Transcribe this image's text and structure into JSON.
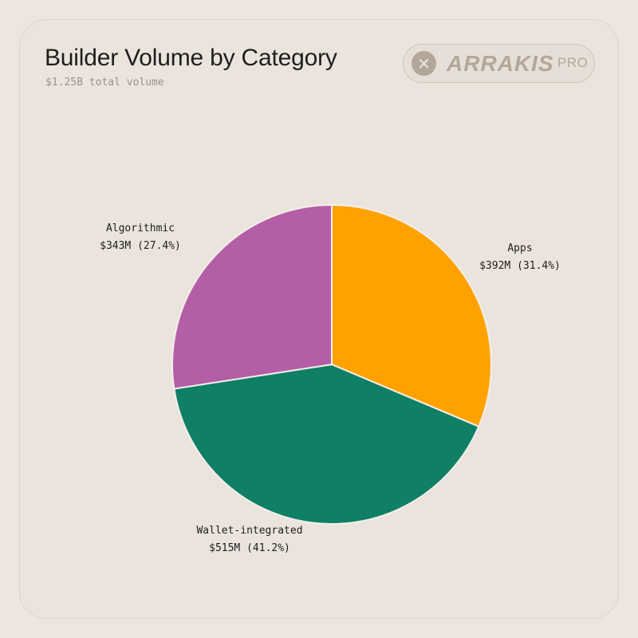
{
  "header": {
    "title": "Builder Volume by Category",
    "subtitle": "$1.25B total volume"
  },
  "brand": {
    "icon": "x-logo-icon",
    "name": "ARRAKIS",
    "tier": "PRO"
  },
  "colors": {
    "apps": "#ffa200",
    "wallet": "#0f7f65",
    "algorithmic": "#b45ea7",
    "background": "#ece6df"
  },
  "chart_data": {
    "type": "pie",
    "title": "Builder Volume by Category",
    "subtitle": "$1.25B total volume",
    "total": "$1.25B",
    "slices": [
      {
        "name": "Apps",
        "value": 392,
        "percent": 31.4,
        "label": "$392M (31.4%)",
        "color": "#ffa200"
      },
      {
        "name": "Wallet-integrated",
        "value": 515,
        "percent": 41.2,
        "label": "$515M (41.2%)",
        "color": "#0f7f65"
      },
      {
        "name": "Algorithmic",
        "value": 343,
        "percent": 27.4,
        "label": "$343M (27.4%)",
        "color": "#b45ea7"
      }
    ],
    "start_angle_deg": 0,
    "direction": "clockwise"
  }
}
